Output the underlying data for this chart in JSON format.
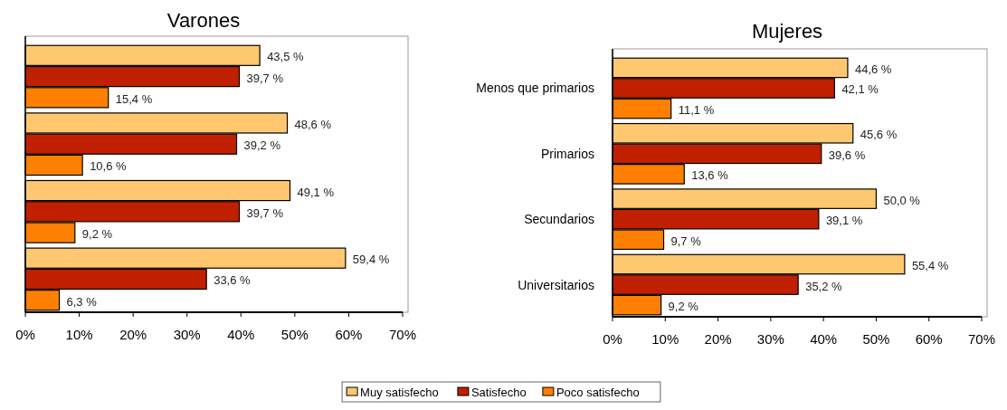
{
  "chart_data": [
    {
      "type": "bar",
      "orientation": "horizontal",
      "title": "Varones",
      "categories": [
        null,
        null,
        null,
        null
      ],
      "xlim": [
        0,
        70
      ],
      "xticks": [
        {
          "value": 0,
          "label": "0%"
        },
        {
          "value": 10,
          "label": "10%"
        },
        {
          "value": 20,
          "label": "20%"
        },
        {
          "value": 30,
          "label": "30%"
        },
        {
          "value": 40,
          "label": "40%"
        },
        {
          "value": 50,
          "label": "50%"
        },
        {
          "value": 60,
          "label": "60%"
        },
        {
          "value": 70,
          "label": "70%"
        }
      ],
      "grid": false,
      "series": [
        {
          "color": "#ffc870",
          "values": [
            43.5,
            48.6,
            49.1,
            59.4
          ],
          "value_labels": [
            "43,5 %",
            "48,6 %",
            "49,1 %",
            "59,4 %"
          ]
        },
        {
          "color": "#c02000",
          "values": [
            39.7,
            39.2,
            39.7,
            33.6
          ],
          "value_labels": [
            "39,7 %",
            "39,2 %",
            "39,7 %",
            "33,6 %"
          ]
        },
        {
          "color": "#ff8000",
          "values": [
            15.4,
            10.6,
            9.2,
            6.3
          ],
          "value_labels": [
            "15,4 %",
            "10,6 %",
            "9,2 %",
            "6,3 %"
          ]
        }
      ]
    },
    {
      "type": "bar",
      "orientation": "horizontal",
      "title": "Mujeres",
      "categories": [
        "Menos que primarios",
        "Primarios",
        "Secundarios",
        "Universitarios"
      ],
      "xlim": [
        0,
        70
      ],
      "xticks": [
        {
          "value": 0,
          "label": "0%"
        },
        {
          "value": 10,
          "label": "10%"
        },
        {
          "value": 20,
          "label": "20%"
        },
        {
          "value": 30,
          "label": "30%"
        },
        {
          "value": 40,
          "label": "40%"
        },
        {
          "value": 50,
          "label": "50%"
        },
        {
          "value": 60,
          "label": "60%"
        },
        {
          "value": 70,
          "label": "70%"
        }
      ],
      "grid": false,
      "legend": "bottom",
      "series": [
        {
          "name": "Muy satisfecho",
          "color": "#ffc870",
          "values": [
            44.6,
            45.6,
            50.0,
            55.4
          ],
          "value_labels": [
            "44,6 %",
            "45,6 %",
            "50,0 %",
            "55,4 %"
          ]
        },
        {
          "name": "Satisfecho",
          "color": "#c02000",
          "values": [
            42.1,
            39.6,
            39.1,
            35.2
          ],
          "value_labels": [
            "42,1 %",
            "39,6 %",
            "39,1 %",
            "35,2 %"
          ]
        },
        {
          "name": "Poco satisfecho",
          "color": "#ff8000",
          "values": [
            11.1,
            13.6,
            9.7,
            9.2
          ],
          "value_labels": [
            "11,1 %",
            "13,6 %",
            "9,7 %",
            "9,2 %"
          ]
        }
      ]
    }
  ]
}
